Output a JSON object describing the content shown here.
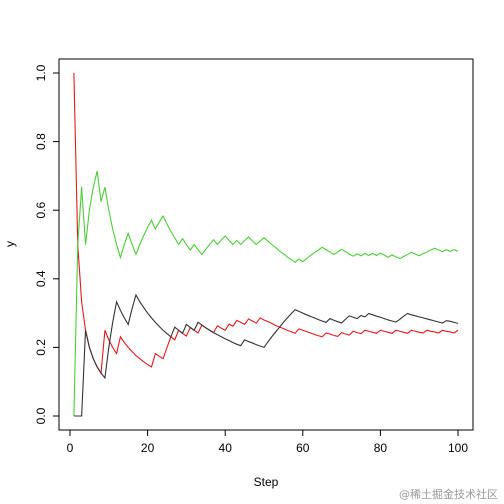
{
  "chart_data": {
    "type": "line",
    "xlabel": "Step",
    "ylabel": "y",
    "xlim": [
      0,
      100
    ],
    "ylim": [
      0,
      1.0
    ],
    "x_ticks": [
      0,
      20,
      40,
      60,
      80,
      100
    ],
    "y_ticks": [
      0.0,
      0.2,
      0.4,
      0.6,
      0.8,
      1.0
    ],
    "x_tick_labels": [
      "0",
      "20",
      "40",
      "60",
      "80",
      "100"
    ],
    "y_tick_labels": [
      "0.0",
      "0.2",
      "0.4",
      "0.6",
      "0.8",
      "1.0"
    ],
    "grid": false,
    "legend": "none",
    "series": [
      {
        "color": "#E41A1C",
        "points": [
          [
            1,
            1.0
          ],
          [
            2,
            0.5
          ],
          [
            3,
            0.333
          ],
          [
            4,
            0.25
          ],
          [
            5,
            0.2
          ],
          [
            6,
            0.167
          ],
          [
            7,
            0.143
          ],
          [
            8,
            0.125
          ],
          [
            9,
            0.25
          ],
          [
            10,
            0.222
          ],
          [
            11,
            0.2
          ],
          [
            12,
            0.182
          ],
          [
            13,
            0.231
          ],
          [
            14,
            0.214
          ],
          [
            15,
            0.2
          ],
          [
            16,
            0.188
          ],
          [
            17,
            0.176
          ],
          [
            18,
            0.167
          ],
          [
            19,
            0.158
          ],
          [
            20,
            0.15
          ],
          [
            21,
            0.143
          ],
          [
            22,
            0.182
          ],
          [
            23,
            0.174
          ],
          [
            24,
            0.167
          ],
          [
            25,
            0.2
          ],
          [
            26,
            0.231
          ],
          [
            27,
            0.222
          ],
          [
            28,
            0.25
          ],
          [
            29,
            0.241
          ],
          [
            30,
            0.233
          ],
          [
            31,
            0.258
          ],
          [
            32,
            0.25
          ],
          [
            33,
            0.242
          ],
          [
            34,
            0.265
          ],
          [
            35,
            0.257
          ],
          [
            36,
            0.25
          ],
          [
            37,
            0.243
          ],
          [
            38,
            0.263
          ],
          [
            39,
            0.256
          ],
          [
            40,
            0.25
          ],
          [
            41,
            0.268
          ],
          [
            42,
            0.262
          ],
          [
            43,
            0.279
          ],
          [
            44,
            0.273
          ],
          [
            45,
            0.267
          ],
          [
            46,
            0.283
          ],
          [
            47,
            0.277
          ],
          [
            48,
            0.271
          ],
          [
            49,
            0.286
          ],
          [
            50,
            0.28
          ],
          [
            51,
            0.275
          ],
          [
            52,
            0.27
          ],
          [
            53,
            0.264
          ],
          [
            54,
            0.259
          ],
          [
            55,
            0.255
          ],
          [
            56,
            0.25
          ],
          [
            57,
            0.246
          ],
          [
            58,
            0.241
          ],
          [
            59,
            0.254
          ],
          [
            60,
            0.25
          ],
          [
            61,
            0.246
          ],
          [
            62,
            0.242
          ],
          [
            63,
            0.238
          ],
          [
            64,
            0.234
          ],
          [
            65,
            0.231
          ],
          [
            66,
            0.242
          ],
          [
            67,
            0.239
          ],
          [
            68,
            0.235
          ],
          [
            69,
            0.232
          ],
          [
            70,
            0.243
          ],
          [
            71,
            0.239
          ],
          [
            72,
            0.236
          ],
          [
            73,
            0.247
          ],
          [
            74,
            0.243
          ],
          [
            75,
            0.24
          ],
          [
            76,
            0.25
          ],
          [
            77,
            0.247
          ],
          [
            78,
            0.244
          ],
          [
            79,
            0.241
          ],
          [
            80,
            0.25
          ],
          [
            81,
            0.247
          ],
          [
            82,
            0.244
          ],
          [
            83,
            0.241
          ],
          [
            84,
            0.25
          ],
          [
            85,
            0.247
          ],
          [
            86,
            0.244
          ],
          [
            87,
            0.241
          ],
          [
            88,
            0.25
          ],
          [
            89,
            0.247
          ],
          [
            90,
            0.244
          ],
          [
            91,
            0.242
          ],
          [
            92,
            0.25
          ],
          [
            93,
            0.247
          ],
          [
            94,
            0.245
          ],
          [
            95,
            0.242
          ],
          [
            96,
            0.25
          ],
          [
            97,
            0.247
          ],
          [
            98,
            0.245
          ],
          [
            99,
            0.242
          ],
          [
            100,
            0.25
          ]
        ]
      },
      {
        "color": "#4DCC3A",
        "points": [
          [
            1,
            0.0
          ],
          [
            2,
            0.5
          ],
          [
            3,
            0.667
          ],
          [
            4,
            0.5
          ],
          [
            5,
            0.6
          ],
          [
            6,
            0.667
          ],
          [
            7,
            0.714
          ],
          [
            8,
            0.625
          ],
          [
            9,
            0.667
          ],
          [
            10,
            0.6
          ],
          [
            11,
            0.545
          ],
          [
            12,
            0.5
          ],
          [
            13,
            0.462
          ],
          [
            14,
            0.5
          ],
          [
            15,
            0.533
          ],
          [
            16,
            0.5
          ],
          [
            17,
            0.471
          ],
          [
            18,
            0.5
          ],
          [
            19,
            0.526
          ],
          [
            20,
            0.55
          ],
          [
            21,
            0.571
          ],
          [
            22,
            0.545
          ],
          [
            23,
            0.565
          ],
          [
            24,
            0.583
          ],
          [
            25,
            0.56
          ],
          [
            26,
            0.538
          ],
          [
            27,
            0.519
          ],
          [
            28,
            0.5
          ],
          [
            29,
            0.517
          ],
          [
            30,
            0.5
          ],
          [
            31,
            0.484
          ],
          [
            32,
            0.5
          ],
          [
            33,
            0.485
          ],
          [
            34,
            0.471
          ],
          [
            35,
            0.486
          ],
          [
            36,
            0.5
          ],
          [
            37,
            0.514
          ],
          [
            38,
            0.5
          ],
          [
            39,
            0.513
          ],
          [
            40,
            0.525
          ],
          [
            41,
            0.512
          ],
          [
            42,
            0.5
          ],
          [
            43,
            0.512
          ],
          [
            44,
            0.5
          ],
          [
            45,
            0.511
          ],
          [
            46,
            0.522
          ],
          [
            47,
            0.511
          ],
          [
            48,
            0.5
          ],
          [
            49,
            0.51
          ],
          [
            50,
            0.52
          ],
          [
            51,
            0.51
          ],
          [
            52,
            0.5
          ],
          [
            53,
            0.491
          ],
          [
            54,
            0.481
          ],
          [
            55,
            0.473
          ],
          [
            56,
            0.464
          ],
          [
            57,
            0.456
          ],
          [
            58,
            0.448
          ],
          [
            59,
            0.458
          ],
          [
            60,
            0.45
          ],
          [
            61,
            0.459
          ],
          [
            62,
            0.468
          ],
          [
            63,
            0.476
          ],
          [
            64,
            0.484
          ],
          [
            65,
            0.492
          ],
          [
            66,
            0.485
          ],
          [
            67,
            0.478
          ],
          [
            68,
            0.471
          ],
          [
            69,
            0.478
          ],
          [
            70,
            0.486
          ],
          [
            71,
            0.479
          ],
          [
            72,
            0.472
          ],
          [
            73,
            0.466
          ],
          [
            74,
            0.473
          ],
          [
            75,
            0.467
          ],
          [
            76,
            0.474
          ],
          [
            77,
            0.468
          ],
          [
            78,
            0.474
          ],
          [
            79,
            0.468
          ],
          [
            80,
            0.475
          ],
          [
            81,
            0.469
          ],
          [
            82,
            0.463
          ],
          [
            83,
            0.47
          ],
          [
            84,
            0.464
          ],
          [
            85,
            0.459
          ],
          [
            86,
            0.465
          ],
          [
            87,
            0.471
          ],
          [
            88,
            0.477
          ],
          [
            89,
            0.472
          ],
          [
            90,
            0.467
          ],
          [
            91,
            0.473
          ],
          [
            92,
            0.478
          ],
          [
            93,
            0.484
          ],
          [
            94,
            0.489
          ],
          [
            95,
            0.484
          ],
          [
            96,
            0.479
          ],
          [
            97,
            0.485
          ],
          [
            98,
            0.48
          ],
          [
            99,
            0.485
          ],
          [
            100,
            0.48
          ]
        ]
      },
      {
        "color": "#333333",
        "points": [
          [
            1,
            0.0
          ],
          [
            2,
            0.0
          ],
          [
            3,
            0.0
          ],
          [
            4,
            0.25
          ],
          [
            5,
            0.2
          ],
          [
            6,
            0.167
          ],
          [
            7,
            0.143
          ],
          [
            8,
            0.125
          ],
          [
            9,
            0.111
          ],
          [
            10,
            0.2
          ],
          [
            11,
            0.273
          ],
          [
            12,
            0.333
          ],
          [
            13,
            0.308
          ],
          [
            14,
            0.286
          ],
          [
            15,
            0.267
          ],
          [
            16,
            0.313
          ],
          [
            17,
            0.353
          ],
          [
            18,
            0.333
          ],
          [
            19,
            0.316
          ],
          [
            20,
            0.3
          ],
          [
            21,
            0.286
          ],
          [
            22,
            0.273
          ],
          [
            23,
            0.261
          ],
          [
            24,
            0.25
          ],
          [
            25,
            0.24
          ],
          [
            26,
            0.231
          ],
          [
            27,
            0.259
          ],
          [
            28,
            0.25
          ],
          [
            29,
            0.241
          ],
          [
            30,
            0.267
          ],
          [
            31,
            0.258
          ],
          [
            32,
            0.25
          ],
          [
            33,
            0.273
          ],
          [
            34,
            0.265
          ],
          [
            35,
            0.257
          ],
          [
            36,
            0.25
          ],
          [
            37,
            0.243
          ],
          [
            38,
            0.237
          ],
          [
            39,
            0.231
          ],
          [
            40,
            0.225
          ],
          [
            41,
            0.22
          ],
          [
            42,
            0.214
          ],
          [
            43,
            0.209
          ],
          [
            44,
            0.205
          ],
          [
            45,
            0.222
          ],
          [
            46,
            0.217
          ],
          [
            47,
            0.213
          ],
          [
            48,
            0.208
          ],
          [
            49,
            0.204
          ],
          [
            50,
            0.2
          ],
          [
            51,
            0.216
          ],
          [
            52,
            0.231
          ],
          [
            53,
            0.245
          ],
          [
            54,
            0.259
          ],
          [
            55,
            0.273
          ],
          [
            56,
            0.286
          ],
          [
            57,
            0.298
          ],
          [
            58,
            0.31
          ],
          [
            59,
            0.305
          ],
          [
            60,
            0.3
          ],
          [
            61,
            0.295
          ],
          [
            62,
            0.29
          ],
          [
            63,
            0.286
          ],
          [
            64,
            0.281
          ],
          [
            65,
            0.277
          ],
          [
            66,
            0.273
          ],
          [
            67,
            0.284
          ],
          [
            68,
            0.279
          ],
          [
            69,
            0.275
          ],
          [
            70,
            0.271
          ],
          [
            71,
            0.282
          ],
          [
            72,
            0.292
          ],
          [
            73,
            0.288
          ],
          [
            74,
            0.284
          ],
          [
            75,
            0.293
          ],
          [
            76,
            0.289
          ],
          [
            77,
            0.299
          ],
          [
            78,
            0.295
          ],
          [
            79,
            0.291
          ],
          [
            80,
            0.288
          ],
          [
            81,
            0.284
          ],
          [
            82,
            0.28
          ],
          [
            83,
            0.277
          ],
          [
            84,
            0.274
          ],
          [
            85,
            0.282
          ],
          [
            86,
            0.291
          ],
          [
            87,
            0.299
          ],
          [
            88,
            0.295
          ],
          [
            89,
            0.292
          ],
          [
            90,
            0.289
          ],
          [
            91,
            0.286
          ],
          [
            92,
            0.283
          ],
          [
            93,
            0.28
          ],
          [
            94,
            0.277
          ],
          [
            95,
            0.274
          ],
          [
            96,
            0.271
          ],
          [
            97,
            0.278
          ],
          [
            98,
            0.276
          ],
          [
            99,
            0.273
          ],
          [
            100,
            0.27
          ]
        ]
      }
    ]
  },
  "watermark": "@稀土掘金技术社区"
}
